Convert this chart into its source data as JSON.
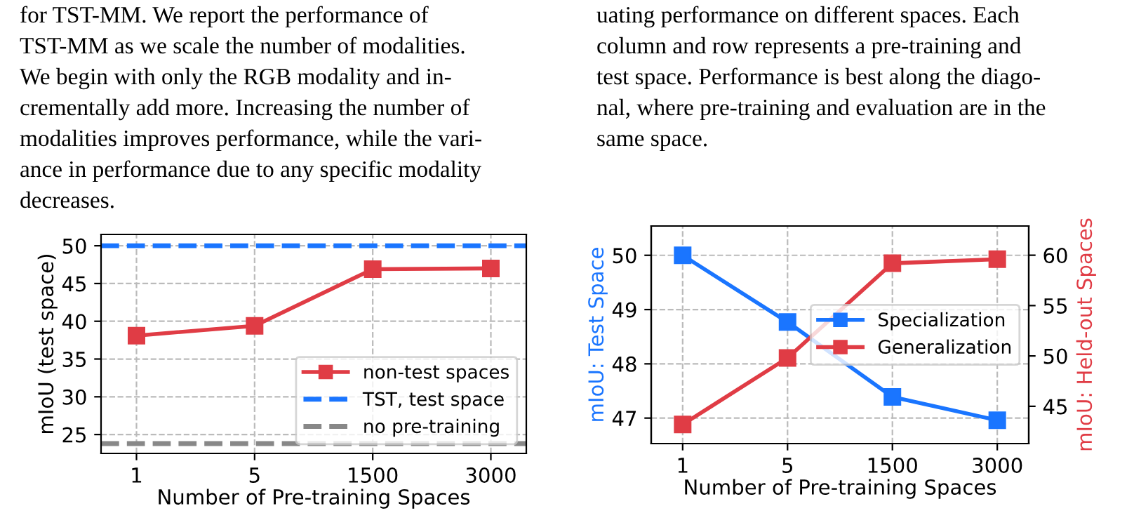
{
  "chart_data": [
    {
      "type": "line",
      "categories": [
        "1",
        "5",
        "1500",
        "3000"
      ],
      "xlabel": "Number of Pre-training Spaces",
      "ylabel": "mIoU (test space)",
      "series": [
        {
          "name": "non-test spaces",
          "color": "#e03c45",
          "values": [
            38.1,
            39.4,
            46.9,
            47.0
          ]
        }
      ],
      "ref_lines": [
        {
          "axis": "y",
          "value": 50,
          "label": "TST, test space",
          "color": "#1a75ff",
          "line_style": "dashed"
        },
        {
          "axis": "y",
          "value": 23.8,
          "label": "no pre-training",
          "color": "#888888",
          "line_style": "dashed"
        }
      ],
      "ylim": [
        22.5,
        51.5
      ],
      "yticks": [
        25,
        30,
        35,
        40,
        45,
        50
      ],
      "grid": true,
      "legend": "lower right",
      "marker": "square",
      "line_style": "solid",
      "annotations": [
        "for TST-MM. We report the performance of",
        "TST-MM as we scale the number of modalities.",
        "We begin with only the RGB modality and in-",
        "crementally add more. Increasing the number of",
        "modalities improves performance, while the vari-",
        "ance in performance due to any specific modality",
        "decreases."
      ]
    },
    {
      "type": "line",
      "categories": [
        "1",
        "5",
        "1500",
        "3000"
      ],
      "xlabel": "Number of Pre-training Spaces",
      "ylabel": "mIoU: Test Space",
      "y2label": "mIoU: Held-out Spaces",
      "series": [
        {
          "name": "Specialization",
          "color": "#1a75ff",
          "values": [
            50.0,
            48.77,
            47.39,
            46.96
          ]
        },
        {
          "name": "Generalization",
          "color": "#e03c45",
          "axis": "y2",
          "values": [
            43.2,
            49.8,
            59.2,
            59.6
          ]
        }
      ],
      "ylim": [
        46.53,
        50.54
      ],
      "yticks": [
        47,
        48,
        49,
        50
      ],
      "y2lim": [
        41.3,
        62.9
      ],
      "y2ticks": [
        45,
        50,
        55,
        60
      ],
      "grid": true,
      "legend": "center right",
      "marker": "square",
      "line_style": "solid",
      "annotations": [
        "uating performance on different spaces. Each",
        "column and row represents a pre-training and",
        "test space. Performance is best along the diago-",
        "nal, where pre-training and evaluation are in the",
        "same space."
      ]
    }
  ]
}
